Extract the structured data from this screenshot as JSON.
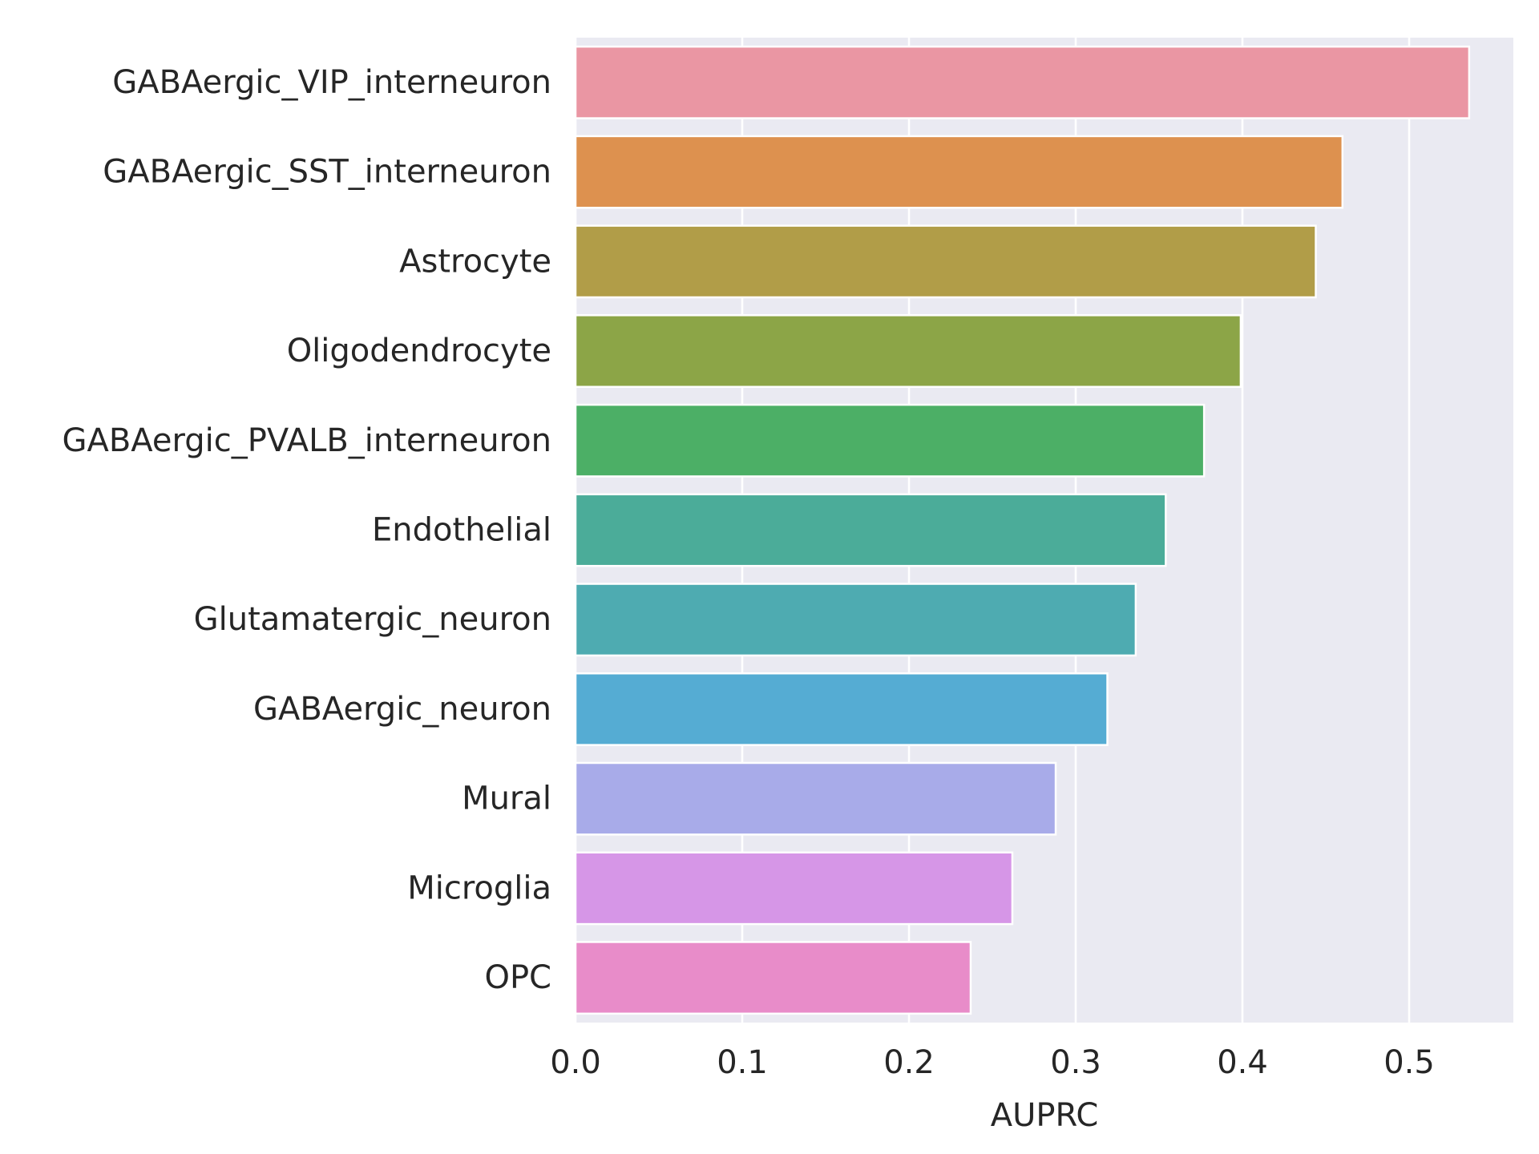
{
  "chart_data": {
    "type": "bar",
    "orientation": "horizontal",
    "title": "",
    "xlabel": "AUPRC",
    "ylabel": "",
    "xlim": [
      0,
      0.5625
    ],
    "grid": true,
    "legend": "none",
    "categories": [
      "GABAergic_VIP_interneuron",
      "GABAergic_SST_interneuron",
      "Astrocyte",
      "Oligodendrocyte",
      "GABAergic_PVALB_interneuron",
      "Endothelial",
      "Glutamatergic_neuron",
      "GABAergic_neuron",
      "Mural",
      "Microglia",
      "OPC"
    ],
    "values": [
      0.536,
      0.46,
      0.444,
      0.399,
      0.377,
      0.354,
      0.336,
      0.319,
      0.288,
      0.262,
      0.237
    ],
    "colors": [
      "#ea96a3",
      "#dd914f",
      "#b19d48",
      "#8ca547",
      "#4caf66",
      "#4bac99",
      "#4eabb1",
      "#55acd3",
      "#a8abe9",
      "#d696e7",
      "#e88cc9"
    ],
    "xticks": [
      "0.0",
      "0.1",
      "0.2",
      "0.3",
      "0.4",
      "0.5"
    ],
    "xtick_values": [
      0,
      0.1,
      0.2,
      0.3,
      0.4,
      0.5
    ],
    "background_color": "#eaeaf2",
    "grid_color": "#ffffff"
  }
}
